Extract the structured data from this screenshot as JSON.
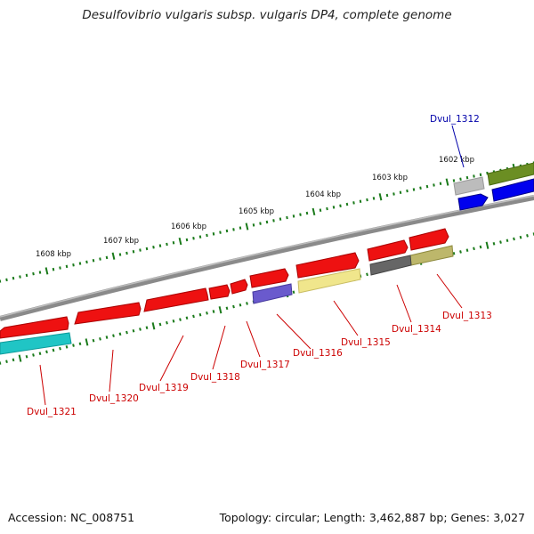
{
  "title": "Desulfovibrio vulgaris subsp. vulgaris DP4, complete genome",
  "footer": {
    "accession": "Accession: NC_008751",
    "topology": "Topology: circular; Length: 3,462,887 bp; Genes: 3,027"
  },
  "colors": {
    "backbone": "#808080",
    "tick": "#1a7a1a",
    "red_gene": "#ee1111",
    "label_red": "#cc0000",
    "label_blue": "#0000aa"
  },
  "scale_labels": [
    "1602 kbp",
    "1603 kbp",
    "1604 kbp",
    "1605 kbp",
    "1606 kbp",
    "1607 kbp",
    "1608 kbp"
  ],
  "gene_labels": [
    {
      "name": "Dvul_1312",
      "color": "blue"
    },
    {
      "name": "Dvul_1313",
      "color": "red"
    },
    {
      "name": "Dvul_1314",
      "color": "red"
    },
    {
      "name": "Dvul_1315",
      "color": "red"
    },
    {
      "name": "Dvul_1316",
      "color": "red"
    },
    {
      "name": "Dvul_1317",
      "color": "red"
    },
    {
      "name": "Dvul_1318",
      "color": "red"
    },
    {
      "name": "Dvul_1319",
      "color": "red"
    },
    {
      "name": "Dvul_1320",
      "color": "red"
    },
    {
      "name": "Dvul_1321",
      "color": "red"
    }
  ]
}
